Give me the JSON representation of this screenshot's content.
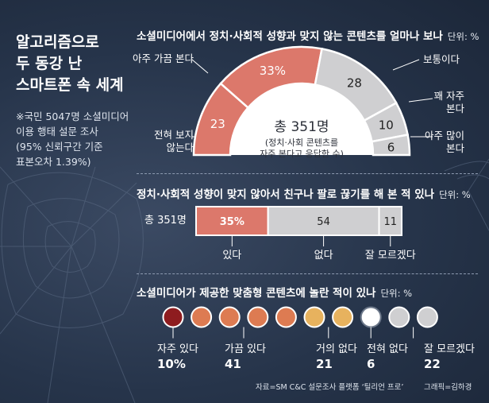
{
  "left": {
    "title": "알고리즘으로\n두 동강 난\n스마트폰 속 세계",
    "note": "※국민 5047명 소셜미디어\n이용 행태 설문 조사\n(95% 신뢰구간 기준\n표본오차 1.39%)"
  },
  "sec1": {
    "title": "소셜미디어에서 정치·사회적 성향과 맞지 않는 콘텐츠를 얼마나 보나",
    "unit": "단위: %",
    "total": "총 351명",
    "total_note": "(정치·사회 콘텐츠를\n자주 본다고 응답한 수)"
  },
  "sec2": {
    "title": "정치·사회적 성향이 맞지 않아서 친구나 팔로 끊기를 해 본 적 있나",
    "unit": "단위: %",
    "row_label": "총 351명"
  },
  "sec3": {
    "title": "소셜미디어가 제공한 맞춤형 콘텐츠에 놀란 적이 있나",
    "unit": "단위: %"
  },
  "footer": {
    "source": "자료=SM C&C 설문조사 플랫폼 ‘틸리언 프로’",
    "credit": "그래픽=김하경"
  },
  "colors": {
    "accent": "#dc786b",
    "gray": "#cfcfd1",
    "dark_red": "#8e1c1f",
    "orange": "#dd7b52",
    "yellow": "#e7b25e",
    "blank": "#ffffff"
  },
  "chart_data": [
    {
      "type": "pie",
      "variant": "half-donut",
      "title": "소셜미디어에서 정치·사회적 성향과 맞지 않는 콘텐츠를 얼마나 보나",
      "categories": [
        "전혀 보지 않는다",
        "아주 가끔 본다",
        "보통이다",
        "꽤 자주 본다",
        "아주 많이 본다"
      ],
      "values": [
        23,
        33,
        28,
        10,
        6
      ],
      "value_labels": [
        "23",
        "33%",
        "28",
        "10",
        "6"
      ],
      "total": "총 351명"
    },
    {
      "type": "bar",
      "variant": "stacked-horizontal",
      "title": "정치·사회적 성향이 맞지 않아서 친구나 팔로 끊기를 해 본 적 있나",
      "row": "총 351명",
      "categories": [
        "있다",
        "없다",
        "잘 모르겠다"
      ],
      "values": [
        35,
        54,
        11
      ],
      "value_labels": [
        "35%",
        "54",
        "11"
      ]
    },
    {
      "type": "bar",
      "variant": "dot-row",
      "title": "소셜미디어가 제공한 맞춤형 콘텐츠에 놀란 적이 있나",
      "categories": [
        "자주 있다",
        "가끔 있다",
        "거의 없다",
        "전혀 없다",
        "잘 모르겠다"
      ],
      "values": [
        10,
        41,
        21,
        6,
        22
      ],
      "value_labels": [
        "10%",
        "41",
        "21",
        "6",
        "22"
      ]
    }
  ]
}
